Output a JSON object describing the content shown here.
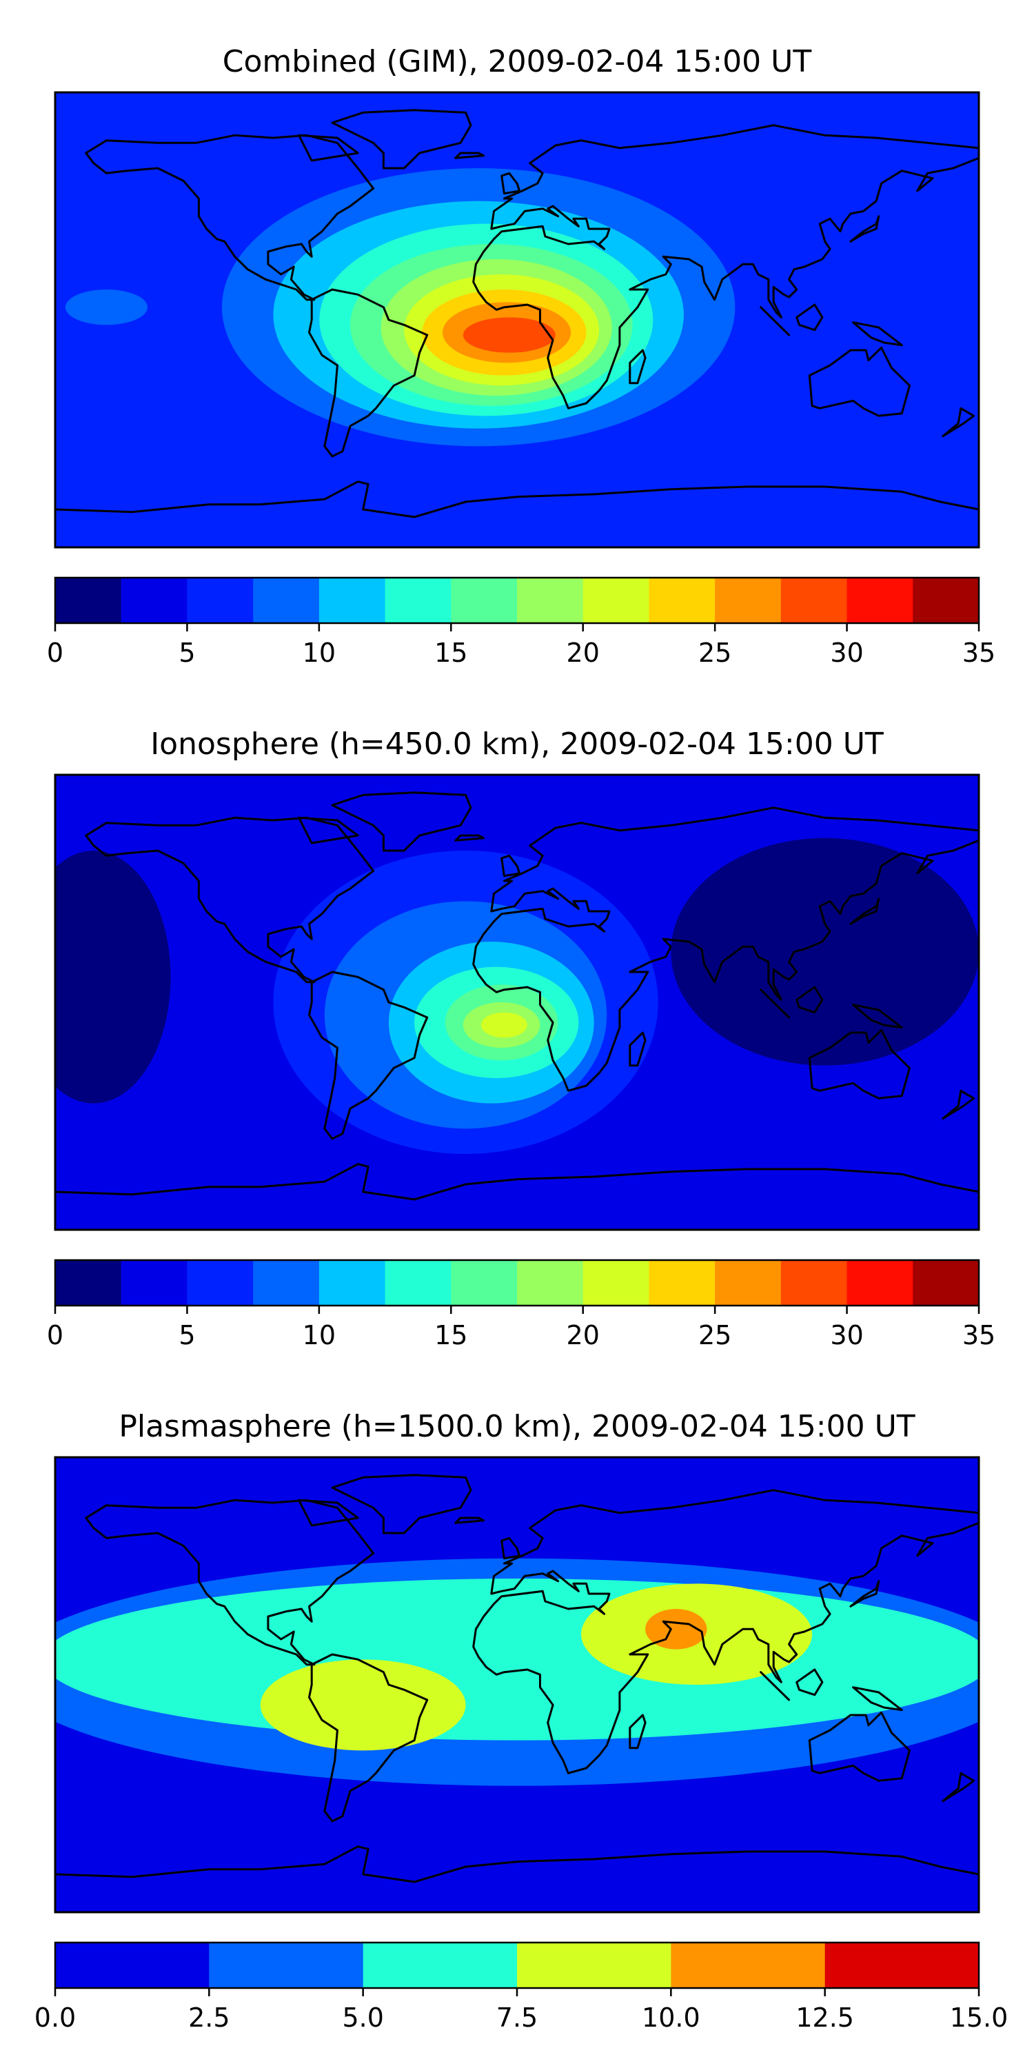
{
  "chart_data": [
    {
      "type": "heatmap",
      "title": "Combined (GIM), 2009-02-04 15:00 UT",
      "colorbar": {
        "levels": [
          0,
          2.5,
          5,
          7.5,
          10,
          12.5,
          15,
          17.5,
          20,
          22.5,
          25,
          27.5,
          30,
          32.5,
          35
        ],
        "colors": [
          "#00007f",
          "#0000e6",
          "#0022ff",
          "#0064ff",
          "#00c4ff",
          "#23ffd4",
          "#54ff99",
          "#98ff5e",
          "#d3ff23",
          "#ffd400",
          "#ff9400",
          "#ff4a00",
          "#ff0d00",
          "#a30000"
        ],
        "tick_labels": [
          "0",
          "5",
          "10",
          "15",
          "20",
          "25",
          "30",
          "35"
        ]
      },
      "background_level": 2,
      "blobs": [
        {
          "lon": -15,
          "lat": 5,
          "rx": 100,
          "ry": 55,
          "level": 3
        },
        {
          "lon": -15,
          "lat": 2,
          "rx": 80,
          "ry": 45,
          "level": 4
        },
        {
          "lon": -12,
          "lat": 0,
          "rx": 65,
          "ry": 38,
          "level": 5
        },
        {
          "lon": -10,
          "lat": -2,
          "rx": 55,
          "ry": 32,
          "level": 6
        },
        {
          "lon": -8,
          "lat": -3,
          "rx": 45,
          "ry": 27,
          "level": 7
        },
        {
          "lon": -6,
          "lat": -4,
          "rx": 38,
          "ry": 22,
          "level": 8
        },
        {
          "lon": -5,
          "lat": -5,
          "rx": 32,
          "ry": 17,
          "level": 9
        },
        {
          "lon": -4,
          "lat": -5,
          "rx": 25,
          "ry": 12,
          "level": 10
        },
        {
          "lon": -3,
          "lat": -6,
          "rx": 18,
          "ry": 7,
          "level": 11
        },
        {
          "lon": -160,
          "lat": 5,
          "rx": 16,
          "ry": 7,
          "level": 3
        }
      ]
    },
    {
      "type": "heatmap",
      "title": "Ionosphere  (h=450.0 km), 2009-02-04 15:00 UT",
      "colorbar": {
        "levels": [
          0,
          2.5,
          5,
          7.5,
          10,
          12.5,
          15,
          17.5,
          20,
          22.5,
          25,
          27.5,
          30,
          32.5,
          35
        ],
        "colors": [
          "#00007f",
          "#0000e6",
          "#0022ff",
          "#0064ff",
          "#00c4ff",
          "#23ffd4",
          "#54ff99",
          "#98ff5e",
          "#d3ff23",
          "#ffd400",
          "#ff9400",
          "#ff4a00",
          "#ff0d00",
          "#a30000"
        ],
        "tick_labels": [
          "0",
          "5",
          "10",
          "15",
          "20",
          "25",
          "30",
          "35"
        ]
      },
      "background_level": 1,
      "blobs": [
        {
          "lon": -165,
          "lat": 10,
          "rx": 30,
          "ry": 50,
          "level": 0
        },
        {
          "lon": 120,
          "lat": 20,
          "rx": 60,
          "ry": 45,
          "level": 0
        },
        {
          "lon": -20,
          "lat": 0,
          "rx": 75,
          "ry": 60,
          "level": 2
        },
        {
          "lon": -20,
          "lat": -5,
          "rx": 55,
          "ry": 45,
          "level": 3
        },
        {
          "lon": -10,
          "lat": -8,
          "rx": 40,
          "ry": 32,
          "level": 4
        },
        {
          "lon": -8,
          "lat": -8,
          "rx": 32,
          "ry": 22,
          "level": 5
        },
        {
          "lon": -6,
          "lat": -8,
          "rx": 22,
          "ry": 15,
          "level": 6
        },
        {
          "lon": -6,
          "lat": -9,
          "rx": 15,
          "ry": 9,
          "level": 7
        },
        {
          "lon": -5,
          "lat": -9,
          "rx": 9,
          "ry": 5,
          "level": 8
        }
      ]
    },
    {
      "type": "heatmap",
      "title": "Plasmasphere (h=1500.0 km), 2009-02-04 15:00 UT",
      "colorbar": {
        "levels": [
          0.0,
          2.5,
          5.0,
          7.5,
          10.0,
          12.5,
          15.0
        ],
        "colors": [
          "#0000e6",
          "#0064ff",
          "#23ffd4",
          "#d3ff23",
          "#ff9400",
          "#dd0000"
        ],
        "tick_labels": [
          "0.0",
          "2.5",
          "5.0",
          "7.5",
          "10.0",
          "12.5",
          "15.0"
        ]
      },
      "background_level": 0,
      "blobs": [
        {
          "lon": 0,
          "lat": 5,
          "rx": 200,
          "ry": 45,
          "level": 1
        },
        {
          "lon": 0,
          "lat": 10,
          "rx": 185,
          "ry": 32,
          "level": 2
        },
        {
          "lon": -60,
          "lat": -8,
          "rx": 40,
          "ry": 18,
          "level": 3
        },
        {
          "lon": 70,
          "lat": 20,
          "rx": 45,
          "ry": 20,
          "level": 3
        },
        {
          "lon": 62,
          "lat": 22,
          "rx": 12,
          "ry": 8,
          "level": 4
        }
      ]
    }
  ]
}
